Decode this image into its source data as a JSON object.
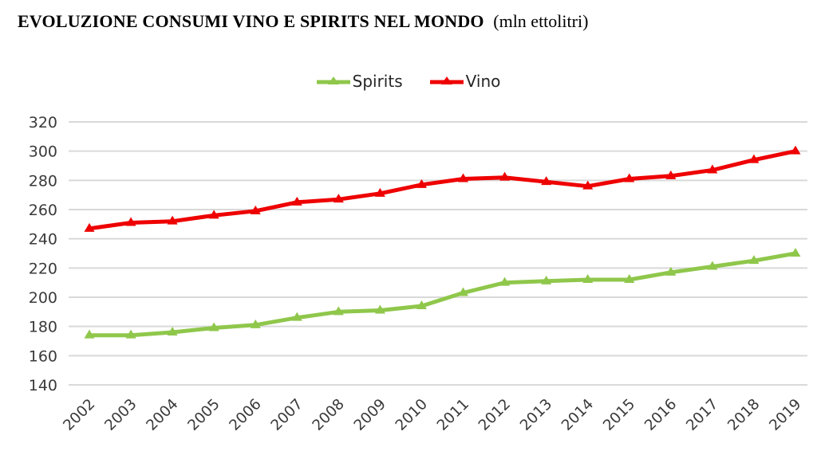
{
  "title": {
    "main": "EVOLUZIONE CONSUMI VINO E SPIRITS NEL MONDO",
    "unit": "(mln ettolitri)"
  },
  "legend": {
    "items": [
      {
        "label": "Spirits",
        "color": "#8fc74b"
      },
      {
        "label": "Vino",
        "color": "#ee0000"
      }
    ]
  },
  "chart_data": {
    "type": "line",
    "title": "EVOLUZIONE CONSUMI VINO E SPIRITS NEL MONDO (mln ettolitri)",
    "x": [
      2002,
      2003,
      2004,
      2005,
      2006,
      2007,
      2008,
      2009,
      2010,
      2011,
      2012,
      2013,
      2014,
      2015,
      2016,
      2017,
      2018,
      2019
    ],
    "series": [
      {
        "name": "Spirits",
        "color": "#8fc74b",
        "values": [
          174,
          174,
          176,
          179,
          181,
          186,
          190,
          191,
          194,
          203,
          210,
          211,
          212,
          212,
          217,
          221,
          225,
          230
        ]
      },
      {
        "name": "Vino",
        "color": "#ee0000",
        "values": [
          247,
          251,
          252,
          256,
          259,
          265,
          267,
          271,
          277,
          281,
          282,
          279,
          276,
          281,
          283,
          287,
          294,
          300
        ]
      }
    ],
    "ylim": [
      140,
      320
    ],
    "ytick_step": 20,
    "xlabel": "",
    "ylabel": "",
    "grid": "horizontal",
    "gridline_color": "#d9d9d9",
    "axis_label_color": "#3a3a3a",
    "legend_position": "top-center",
    "marker": "triangle-up"
  }
}
